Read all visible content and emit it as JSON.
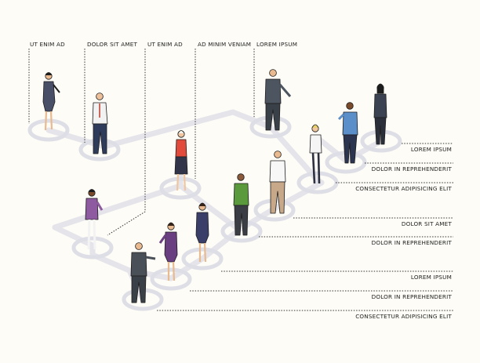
{
  "top_labels": [
    "UT ENIM AD",
    "DOLOR SIT AMET",
    "UT ENIM AD",
    "AD MINIM VENIAM",
    "LOREM IPSUM"
  ],
  "right_labels": [
    "LOREM IPSUM",
    "DOLOR IN REPREHENDERIT",
    "CONSECTETUR ADIPISICING ELIT",
    "DOLOR SIT AMET",
    "DOLOR IN REPREHENDERIT",
    "LOREM IPSUM",
    "DOLOR IN REPREHENDERIT",
    "CONSECTETUR ADIPISICING ELIT"
  ],
  "colors": {
    "background": "#fdfcf6",
    "connector": "#e4e4ea",
    "ring": "#dedee6",
    "dotted_line": "#333333"
  }
}
